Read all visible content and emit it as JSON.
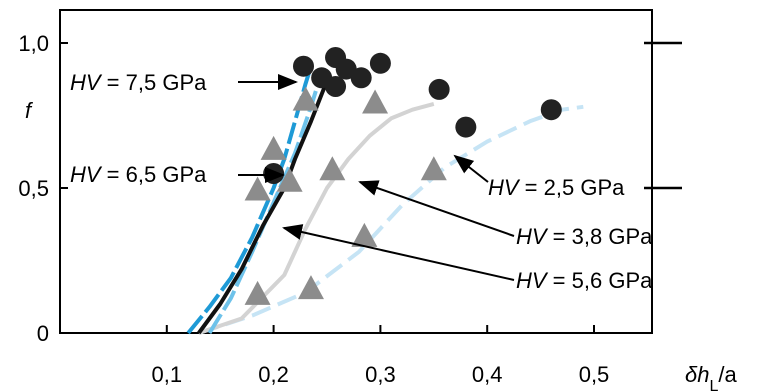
{
  "chart_data": {
    "type": "scatter",
    "xlabel": {
      "prefix": "δ",
      "var": "h",
      "sub": "L",
      "suffix": "/a"
    },
    "ylabel": "f",
    "xlim": [
      0,
      0.5
    ],
    "ylim": [
      0,
      1.05
    ],
    "xticks": [
      {
        "value": 0.1,
        "label": "0,1"
      },
      {
        "value": 0.2,
        "label": "0,2"
      },
      {
        "value": 0.3,
        "label": "0,3"
      },
      {
        "value": 0.4,
        "label": "0,4"
      },
      {
        "value": 0.5,
        "label": "0,5"
      }
    ],
    "yticks": [
      {
        "value": 0,
        "label": "0"
      },
      {
        "value": 0.5,
        "label": "0,5"
      },
      {
        "value": 1.0,
        "label": "1,0"
      }
    ],
    "series": [
      {
        "hv": "7,5 GPa",
        "color": "#1e9ad6",
        "dash": "22 5",
        "curve": [
          [
            0.12,
            0
          ],
          [
            0.14,
            0.09
          ],
          [
            0.16,
            0.19
          ],
          [
            0.18,
            0.33
          ],
          [
            0.2,
            0.5
          ],
          [
            0.21,
            0.6
          ],
          [
            0.22,
            0.73
          ],
          [
            0.23,
            0.86
          ],
          [
            0.235,
            0.92
          ]
        ]
      },
      {
        "hv": "6,5 GPa",
        "color": "#111111",
        "dash": "",
        "curve": [
          [
            0.13,
            0
          ],
          [
            0.15,
            0.1
          ],
          [
            0.17,
            0.22
          ],
          [
            0.19,
            0.37
          ],
          [
            0.21,
            0.5
          ],
          [
            0.22,
            0.6
          ],
          [
            0.235,
            0.73
          ],
          [
            0.25,
            0.87
          ]
        ]
      },
      {
        "hv": "5,6 GPa",
        "color": "#6ec2ea",
        "dash": "22 5",
        "curve": [
          [
            0.14,
            0
          ],
          [
            0.16,
            0.12
          ],
          [
            0.18,
            0.28
          ],
          [
            0.2,
            0.45
          ],
          [
            0.22,
            0.62
          ],
          [
            0.235,
            0.78
          ],
          [
            0.24,
            0.84
          ]
        ]
      },
      {
        "hv": "3,8 GPa",
        "color": "#d3d3d3",
        "dash": "",
        "curve": [
          [
            0.13,
            0
          ],
          [
            0.17,
            0.05
          ],
          [
            0.21,
            0.2
          ],
          [
            0.23,
            0.36
          ],
          [
            0.25,
            0.5
          ],
          [
            0.27,
            0.6
          ],
          [
            0.29,
            0.68
          ],
          [
            0.31,
            0.74
          ],
          [
            0.33,
            0.77
          ],
          [
            0.35,
            0.79
          ]
        ]
      },
      {
        "hv": "2,5 GPa",
        "color": "#c6e4f5",
        "dash": "20 8",
        "curve": [
          [
            0.13,
            0
          ],
          [
            0.18,
            0.06
          ],
          [
            0.23,
            0.14
          ],
          [
            0.28,
            0.28
          ],
          [
            0.32,
            0.44
          ],
          [
            0.36,
            0.57
          ],
          [
            0.4,
            0.66
          ],
          [
            0.44,
            0.73
          ],
          [
            0.47,
            0.77
          ],
          [
            0.49,
            0.78
          ]
        ]
      }
    ],
    "circles": [
      [
        0.2,
        0.55
      ],
      [
        0.228,
        0.92
      ],
      [
        0.245,
        0.88
      ],
      [
        0.258,
        0.95
      ],
      [
        0.258,
        0.85
      ],
      [
        0.268,
        0.91
      ],
      [
        0.282,
        0.88
      ],
      [
        0.3,
        0.93
      ],
      [
        0.355,
        0.84
      ],
      [
        0.38,
        0.71
      ],
      [
        0.46,
        0.77
      ]
    ],
    "triangles": [
      [
        0.185,
        0.13
      ],
      [
        0.235,
        0.15
      ],
      [
        0.185,
        0.49
      ],
      [
        0.2,
        0.63
      ],
      [
        0.215,
        0.52
      ],
      [
        0.23,
        0.8
      ],
      [
        0.255,
        0.56
      ],
      [
        0.295,
        0.79
      ],
      [
        0.285,
        0.33
      ],
      [
        0.35,
        0.56
      ]
    ],
    "annotations": [
      {
        "var": "HV",
        "eq": " = ",
        "val": "7,5 GPa"
      },
      {
        "var": "HV",
        "eq": " = ",
        "val": "6,5 GPa"
      },
      {
        "var": "HV",
        "eq": " = ",
        "val": "2,5 GPa"
      },
      {
        "var": "HV",
        "eq": " = ",
        "val": "3,8 GPa"
      },
      {
        "var": "HV",
        "eq": " = ",
        "val": "5,6 GPa"
      }
    ]
  }
}
